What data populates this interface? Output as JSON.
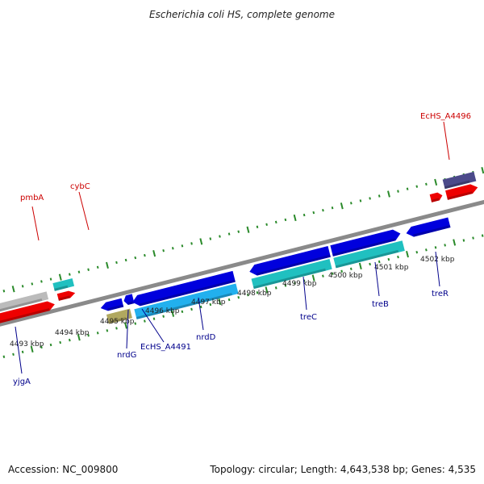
{
  "title": "Escherichia coli HS, complete genome",
  "footer": {
    "accession": "Accession: NC_009800",
    "stats": "Topology: circular; Length: 4,643,538 bp; Genes: 4,535"
  },
  "colors": {
    "backbone": "#808080",
    "tick": "#2a8a2a",
    "forward_label": "#cc0000",
    "reverse_label": "#00008b",
    "blue": "#0000dd",
    "cyan": "#20c0c0",
    "red": "#ee0000",
    "grey": "#bbbbbb",
    "khaki": "#b0a860",
    "darkgrey": "#666666",
    "purple": "#4b4a8a",
    "lightblue": "#22b0ee"
  },
  "kbp_labels": [
    "4493 kbp",
    "4494 kbp",
    "4495 kbp",
    "4496 kbp",
    "4497 kbp",
    "4498 kbp",
    "4499 kbp",
    "4500 kbp",
    "4501 kbp",
    "4502 kbp"
  ],
  "gene_labels": {
    "pmbA": "pmbA",
    "cybC": "cybC",
    "EcHS_A4496": "EcHS_A4496",
    "yjgA": "yjgA",
    "nrdG": "nrdG",
    "EcHS_A4491": "EcHS_A4491",
    "nrdD": "nrdD",
    "treC": "treC",
    "treB": "treB",
    "treR": "treR"
  }
}
